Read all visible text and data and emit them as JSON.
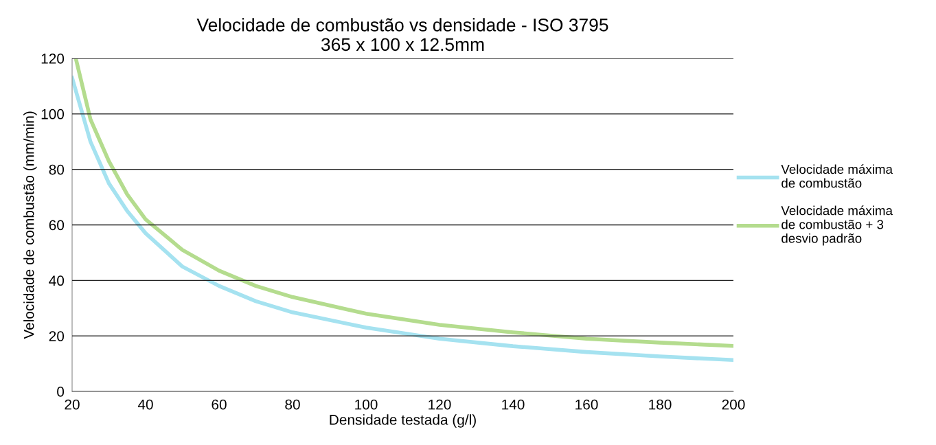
{
  "chart_data": {
    "type": "line",
    "title": "Velocidade de combustão vs densidade - ISO 3795\n365 x 100 x 12.5mm",
    "xlabel": "Densidade testada (g/l)",
    "ylabel": "Velocidade de combustão (mm/min)",
    "xlim": [
      20,
      200
    ],
    "xticks": [
      20,
      40,
      60,
      80,
      100,
      120,
      140,
      160,
      180,
      200
    ],
    "ylim": [
      0,
      120
    ],
    "yticks": [
      0,
      20,
      40,
      60,
      80,
      100,
      120
    ],
    "grid": "y",
    "legend": "right",
    "marker": "none",
    "line_style": "solid",
    "series": [
      {
        "name": "Velocidade máxima\nde combustão",
        "color": "#a5e2f0",
        "x": [
          20,
          25,
          30,
          35,
          40,
          50,
          60,
          70,
          80,
          100,
          120,
          140,
          160,
          180,
          200
        ],
        "values": [
          113,
          90,
          75,
          65,
          57,
          45,
          38,
          32.5,
          28.5,
          23,
          19,
          16.3,
          14.2,
          12.6,
          11.3
        ]
      },
      {
        "name": "Velocidade máxima\nde combustão + 3\ndesvio padrão",
        "color": "#b4dc8e",
        "x": [
          21,
          25,
          30,
          35,
          40,
          50,
          60,
          70,
          80,
          100,
          120,
          140,
          160,
          180,
          200
        ],
        "values": [
          120,
          98,
          83,
          71,
          62,
          51,
          43.5,
          38,
          34,
          28,
          24,
          21.3,
          19,
          17.6,
          16.4
        ]
      }
    ]
  }
}
